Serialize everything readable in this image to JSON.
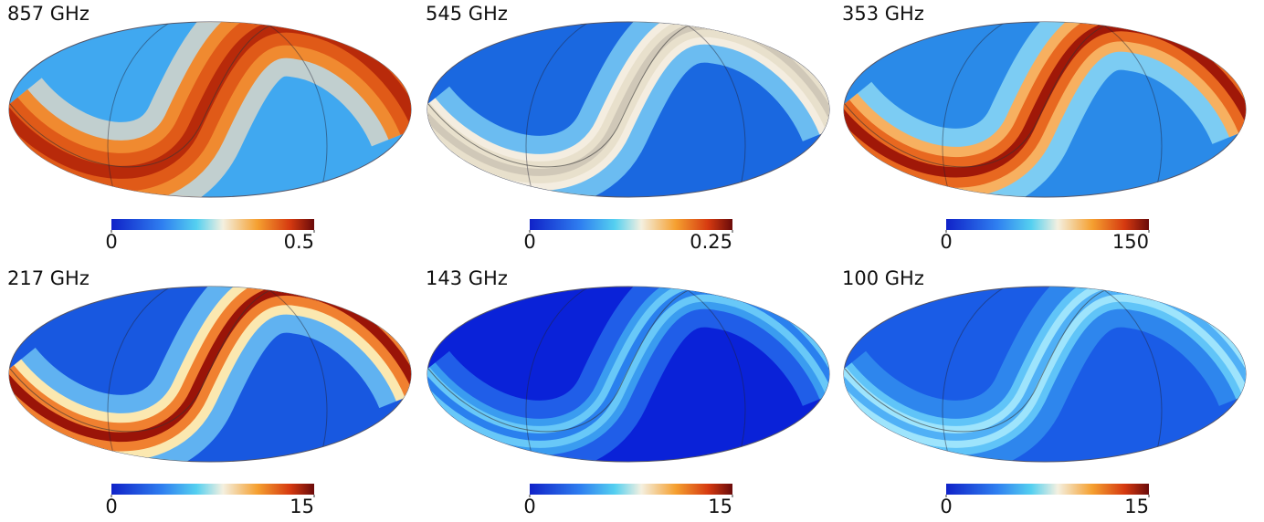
{
  "chart_data": [
    {
      "type": "map",
      "title": "857 GHz",
      "clim": [
        0,
        0.5
      ],
      "ticks": [
        0,
        0.5
      ]
    },
    {
      "type": "map",
      "title": "545 GHz",
      "clim": [
        0,
        0.25
      ],
      "ticks": [
        0,
        0.25
      ]
    },
    {
      "type": "map",
      "title": "353 GHz",
      "clim": [
        0,
        150
      ],
      "ticks": [
        0,
        150
      ]
    },
    {
      "type": "map",
      "title": "217 GHz",
      "clim": [
        0,
        15
      ],
      "ticks": [
        0,
        15
      ]
    },
    {
      "type": "map",
      "title": "143 GHz",
      "clim": [
        0,
        15
      ],
      "ticks": [
        0,
        15
      ]
    },
    {
      "type": "map",
      "title": "100 GHz",
      "clim": [
        0,
        15
      ],
      "ticks": [
        0,
        15
      ]
    }
  ]
}
